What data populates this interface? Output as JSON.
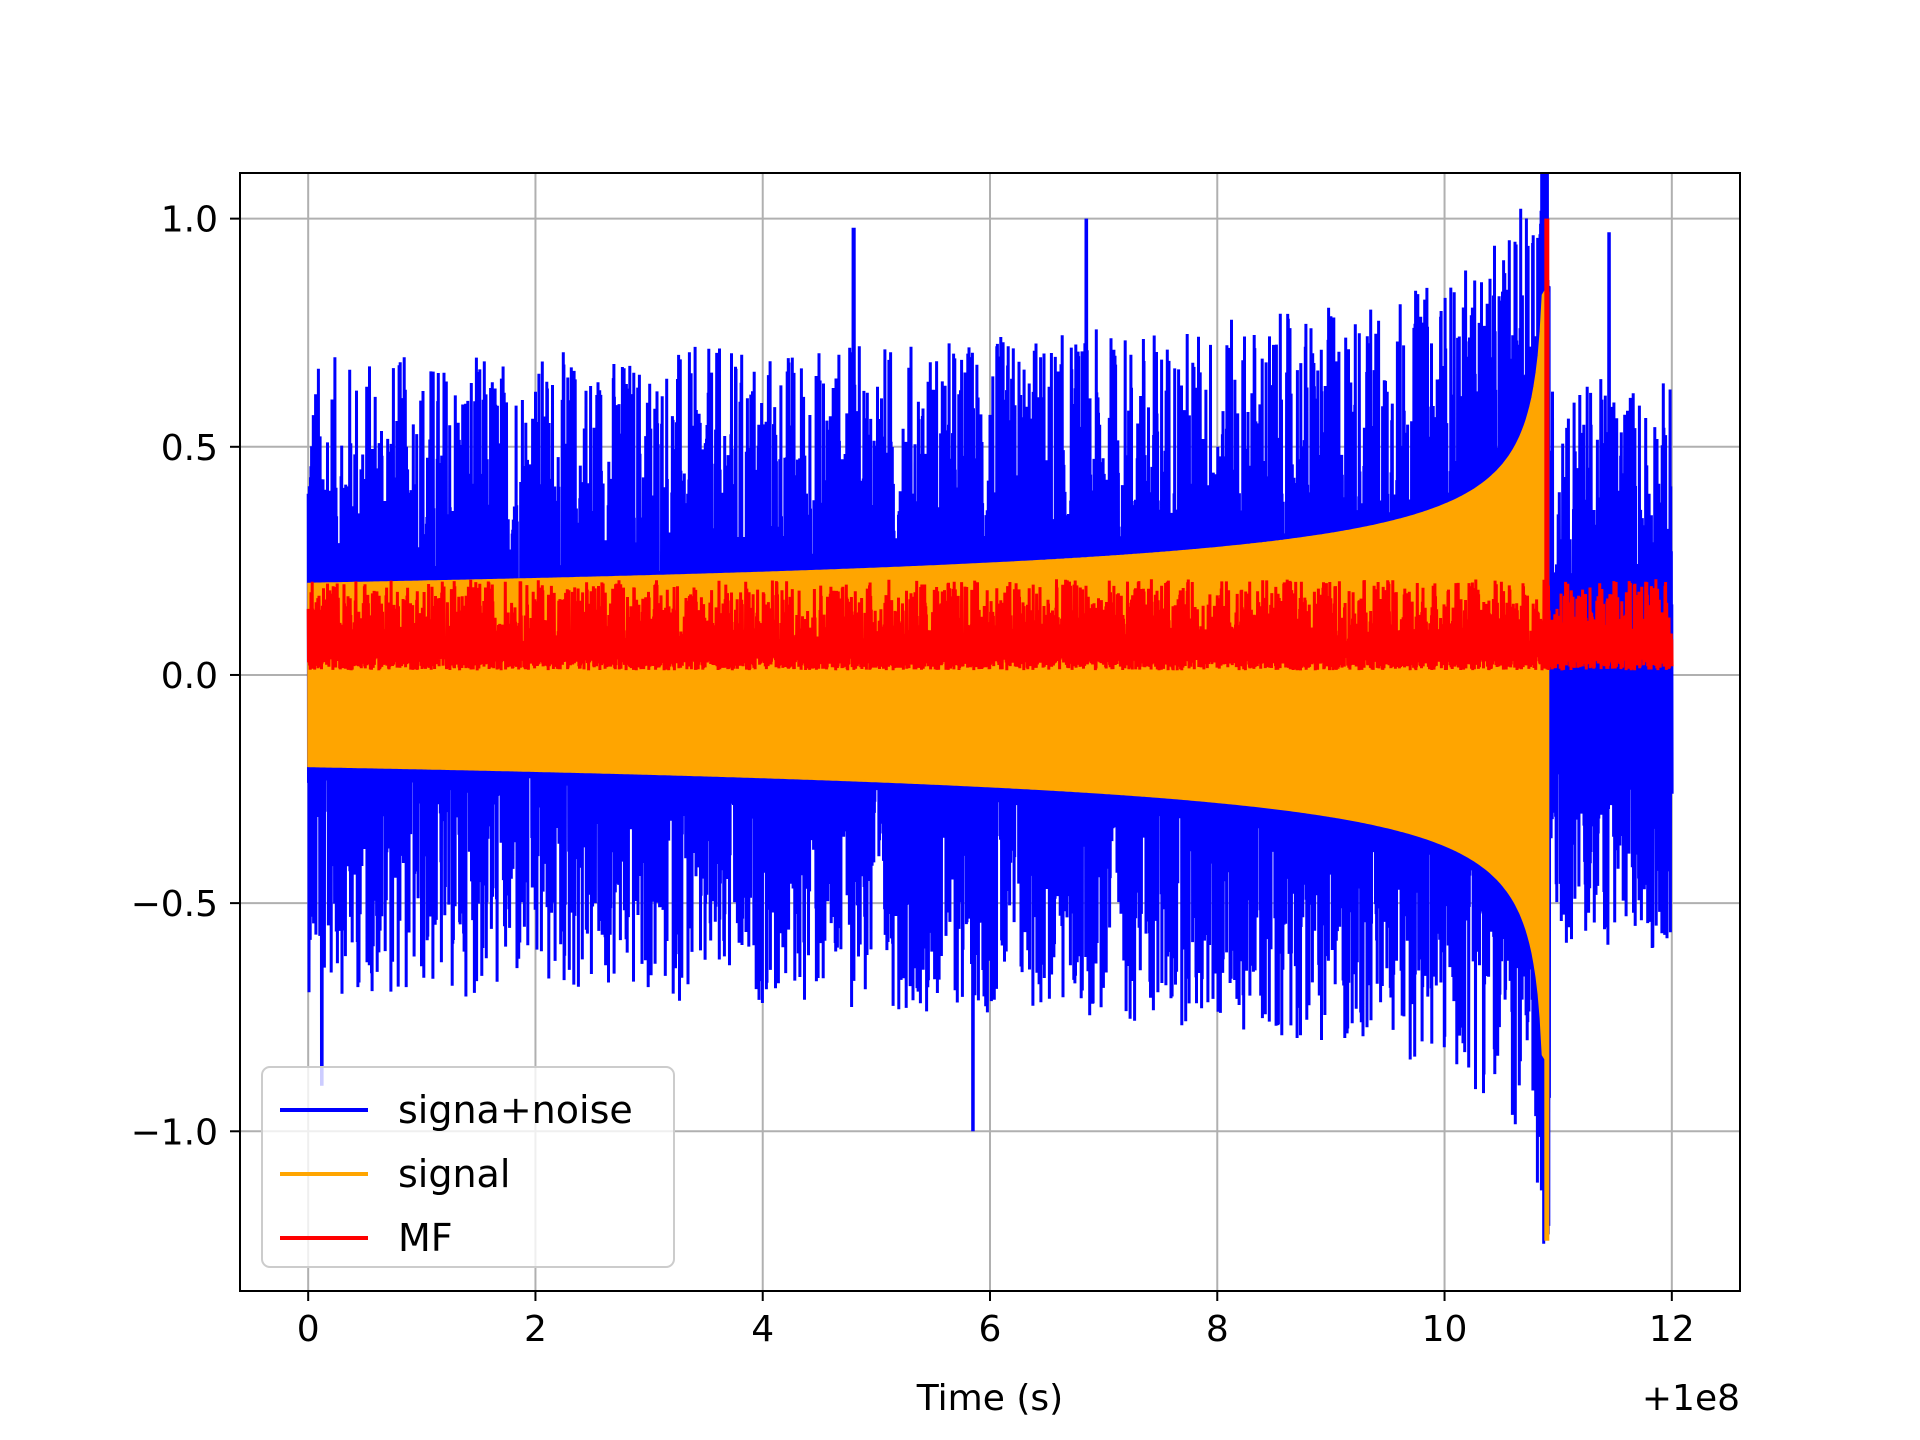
{
  "chart_data": {
    "type": "line",
    "title": "",
    "xlabel": "Time (s)",
    "ylabel": "",
    "x_offset_label": "+1e8",
    "xlim": [
      -0.6,
      12.6
    ],
    "ylim": [
      -1.35,
      1.1
    ],
    "xticks": [
      0,
      2,
      4,
      6,
      8,
      10,
      12
    ],
    "xtick_labels": [
      "0",
      "2",
      "4",
      "6",
      "8",
      "10",
      "12"
    ],
    "yticks": [
      -1.0,
      -0.5,
      0.0,
      0.5,
      1.0
    ],
    "ytick_labels": [
      "−1.0",
      "−0.5",
      "0.0",
      "0.5",
      "1.0"
    ],
    "grid": true,
    "legend_position": "lower-left",
    "series": [
      {
        "name": "signa+noise",
        "color": "#0000ff",
        "description_values": {
          "t_start": 0.0,
          "t_end": 12.0,
          "baseline_envelope_upper": [
            [
              0.0,
              0.2
            ],
            [
              6.0,
              0.24
            ],
            [
              10.0,
              0.35
            ],
            [
              10.8,
              0.55
            ],
            [
              10.9,
              0.8
            ]
          ],
          "peak_max": 1.0,
          "peak_max_t": 6.85,
          "peak_min": -1.02,
          "peak_min_t": 10.9,
          "zero_after_t": 10.92
        }
      },
      {
        "name": "signal",
        "color": "#ffa500",
        "description_values": {
          "t_start": 0.0,
          "t_coalescence": 10.9,
          "amplitude_start": 0.2,
          "amplitude_peak": 0.84,
          "min_at_coalescence": -1.24
        }
      },
      {
        "name": "MF",
        "color": "#ff0000",
        "description_values": {
          "t_start": 0.0,
          "t_end": 12.0,
          "baseline_range": [
            0.01,
            0.2
          ],
          "peak": 1.0,
          "peak_t": 10.9
        }
      }
    ]
  }
}
